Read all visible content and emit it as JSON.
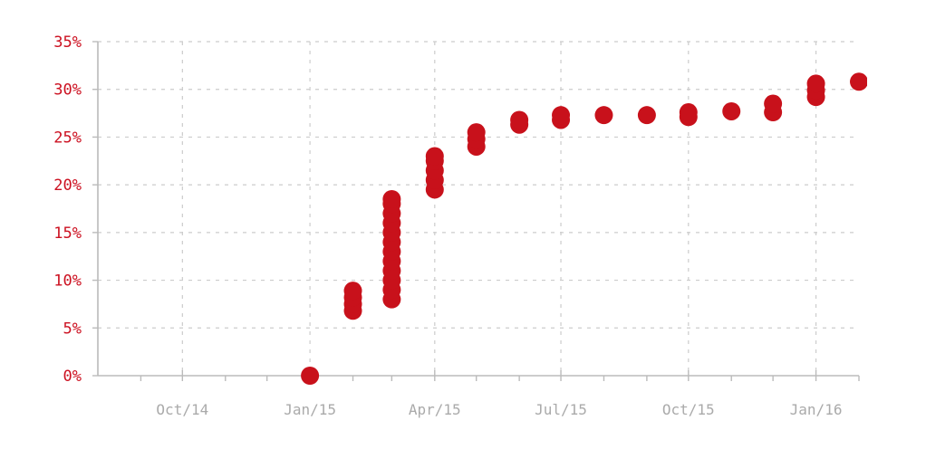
{
  "chart_data": {
    "type": "scatter",
    "title": "",
    "xlabel": "",
    "ylabel": "",
    "x_tick_labels": [
      "Oct/14",
      "Jan/15",
      "Apr/15",
      "Jul/15",
      "Oct/15",
      "Jan/16"
    ],
    "x_tick_dates": [
      "2014-10-01",
      "2015-01-01",
      "2015-04-01",
      "2015-07-01",
      "2015-10-01",
      "2016-01-01"
    ],
    "xlim": [
      "2014-08-01",
      "2016-02-01"
    ],
    "y_tick_labels": [
      "0%",
      "5%",
      "10%",
      "15%",
      "20%",
      "25%",
      "30%",
      "35%"
    ],
    "y_tick_values": [
      0,
      5,
      10,
      15,
      20,
      25,
      30,
      35
    ],
    "ylim": [
      0,
      35
    ],
    "y_unit": "%",
    "grid": true,
    "legend": "none",
    "colors": {
      "points": "#c8111b",
      "ytick_text": "#cc1020",
      "xtick_text": "#aaaaaa",
      "grid": "#cccccc",
      "axis": "#bbbbbb"
    },
    "series": [
      {
        "points": [
          {
            "x": "2015-01-01",
            "y": 0
          },
          {
            "x": "2015-02-01",
            "y": 6.8
          },
          {
            "x": "2015-02-01",
            "y": 7.5
          },
          {
            "x": "2015-02-01",
            "y": 8.2
          },
          {
            "x": "2015-02-01",
            "y": 8.9
          },
          {
            "x": "2015-03-01",
            "y": 8.0
          },
          {
            "x": "2015-03-01",
            "y": 9.0
          },
          {
            "x": "2015-03-01",
            "y": 10.0
          },
          {
            "x": "2015-03-01",
            "y": 11.0
          },
          {
            "x": "2015-03-01",
            "y": 12.0
          },
          {
            "x": "2015-03-01",
            "y": 13.0
          },
          {
            "x": "2015-03-01",
            "y": 14.0
          },
          {
            "x": "2015-03-01",
            "y": 15.0
          },
          {
            "x": "2015-03-01",
            "y": 16.0
          },
          {
            "x": "2015-03-01",
            "y": 17.0
          },
          {
            "x": "2015-03-01",
            "y": 18.0
          },
          {
            "x": "2015-03-01",
            "y": 18.5
          },
          {
            "x": "2015-04-01",
            "y": 19.5
          },
          {
            "x": "2015-04-01",
            "y": 20.5
          },
          {
            "x": "2015-04-01",
            "y": 21.5
          },
          {
            "x": "2015-04-01",
            "y": 22.5
          },
          {
            "x": "2015-04-01",
            "y": 23.0
          },
          {
            "x": "2015-05-01",
            "y": 24.0
          },
          {
            "x": "2015-05-01",
            "y": 24.8
          },
          {
            "x": "2015-05-01",
            "y": 25.5
          },
          {
            "x": "2015-06-01",
            "y": 26.3
          },
          {
            "x": "2015-06-01",
            "y": 26.8
          },
          {
            "x": "2015-07-01",
            "y": 26.8
          },
          {
            "x": "2015-07-01",
            "y": 27.3
          },
          {
            "x": "2015-08-01",
            "y": 27.3
          },
          {
            "x": "2015-09-01",
            "y": 27.3
          },
          {
            "x": "2015-10-01",
            "y": 27.1
          },
          {
            "x": "2015-10-01",
            "y": 27.6
          },
          {
            "x": "2015-11-01",
            "y": 27.7
          },
          {
            "x": "2015-12-01",
            "y": 27.6
          },
          {
            "x": "2015-12-01",
            "y": 28.5
          },
          {
            "x": "2016-01-01",
            "y": 29.2
          },
          {
            "x": "2016-01-01",
            "y": 29.9
          },
          {
            "x": "2016-01-01",
            "y": 30.6
          },
          {
            "x": "2016-02-01",
            "y": 30.8
          }
        ]
      }
    ]
  }
}
